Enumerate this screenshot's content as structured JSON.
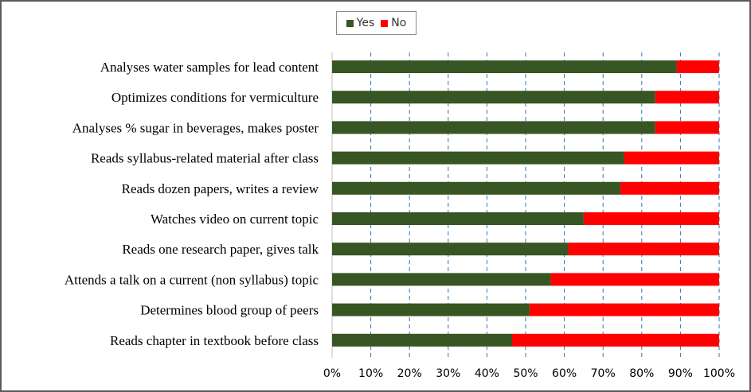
{
  "chart_data": {
    "type": "bar",
    "orientation": "horizontal",
    "stacked": true,
    "title": "",
    "xlabel": "",
    "ylabel": "",
    "xlim": [
      0,
      100
    ],
    "x_ticks": [
      "0%",
      "10%",
      "20%",
      "30%",
      "40%",
      "50%",
      "60%",
      "70%",
      "80%",
      "90%",
      "100%"
    ],
    "grid": "vertical dashed",
    "legend_position": "top-center",
    "categories": [
      "Analyses water samples for lead content",
      "Optimizes conditions for vermiculture",
      "Analyses % sugar in beverages, makes poster",
      "Reads syllabus-related material after class",
      "Reads dozen papers, writes a review",
      "Watches video on current topic",
      "Reads one research paper, gives talk",
      "Attends a talk on a current (non syllabus) topic",
      "Determines blood group of peers",
      "Reads chapter in textbook before class"
    ],
    "series": [
      {
        "name": "Yes",
        "color": "#375623",
        "values": [
          89,
          83.5,
          83.5,
          75.5,
          74.5,
          65,
          61,
          56.5,
          51,
          46.5
        ]
      },
      {
        "name": "No",
        "color": "#ff0000",
        "values": [
          11,
          16.5,
          16.5,
          24.5,
          25.5,
          35,
          39,
          43.5,
          49,
          53.5
        ]
      }
    ]
  }
}
